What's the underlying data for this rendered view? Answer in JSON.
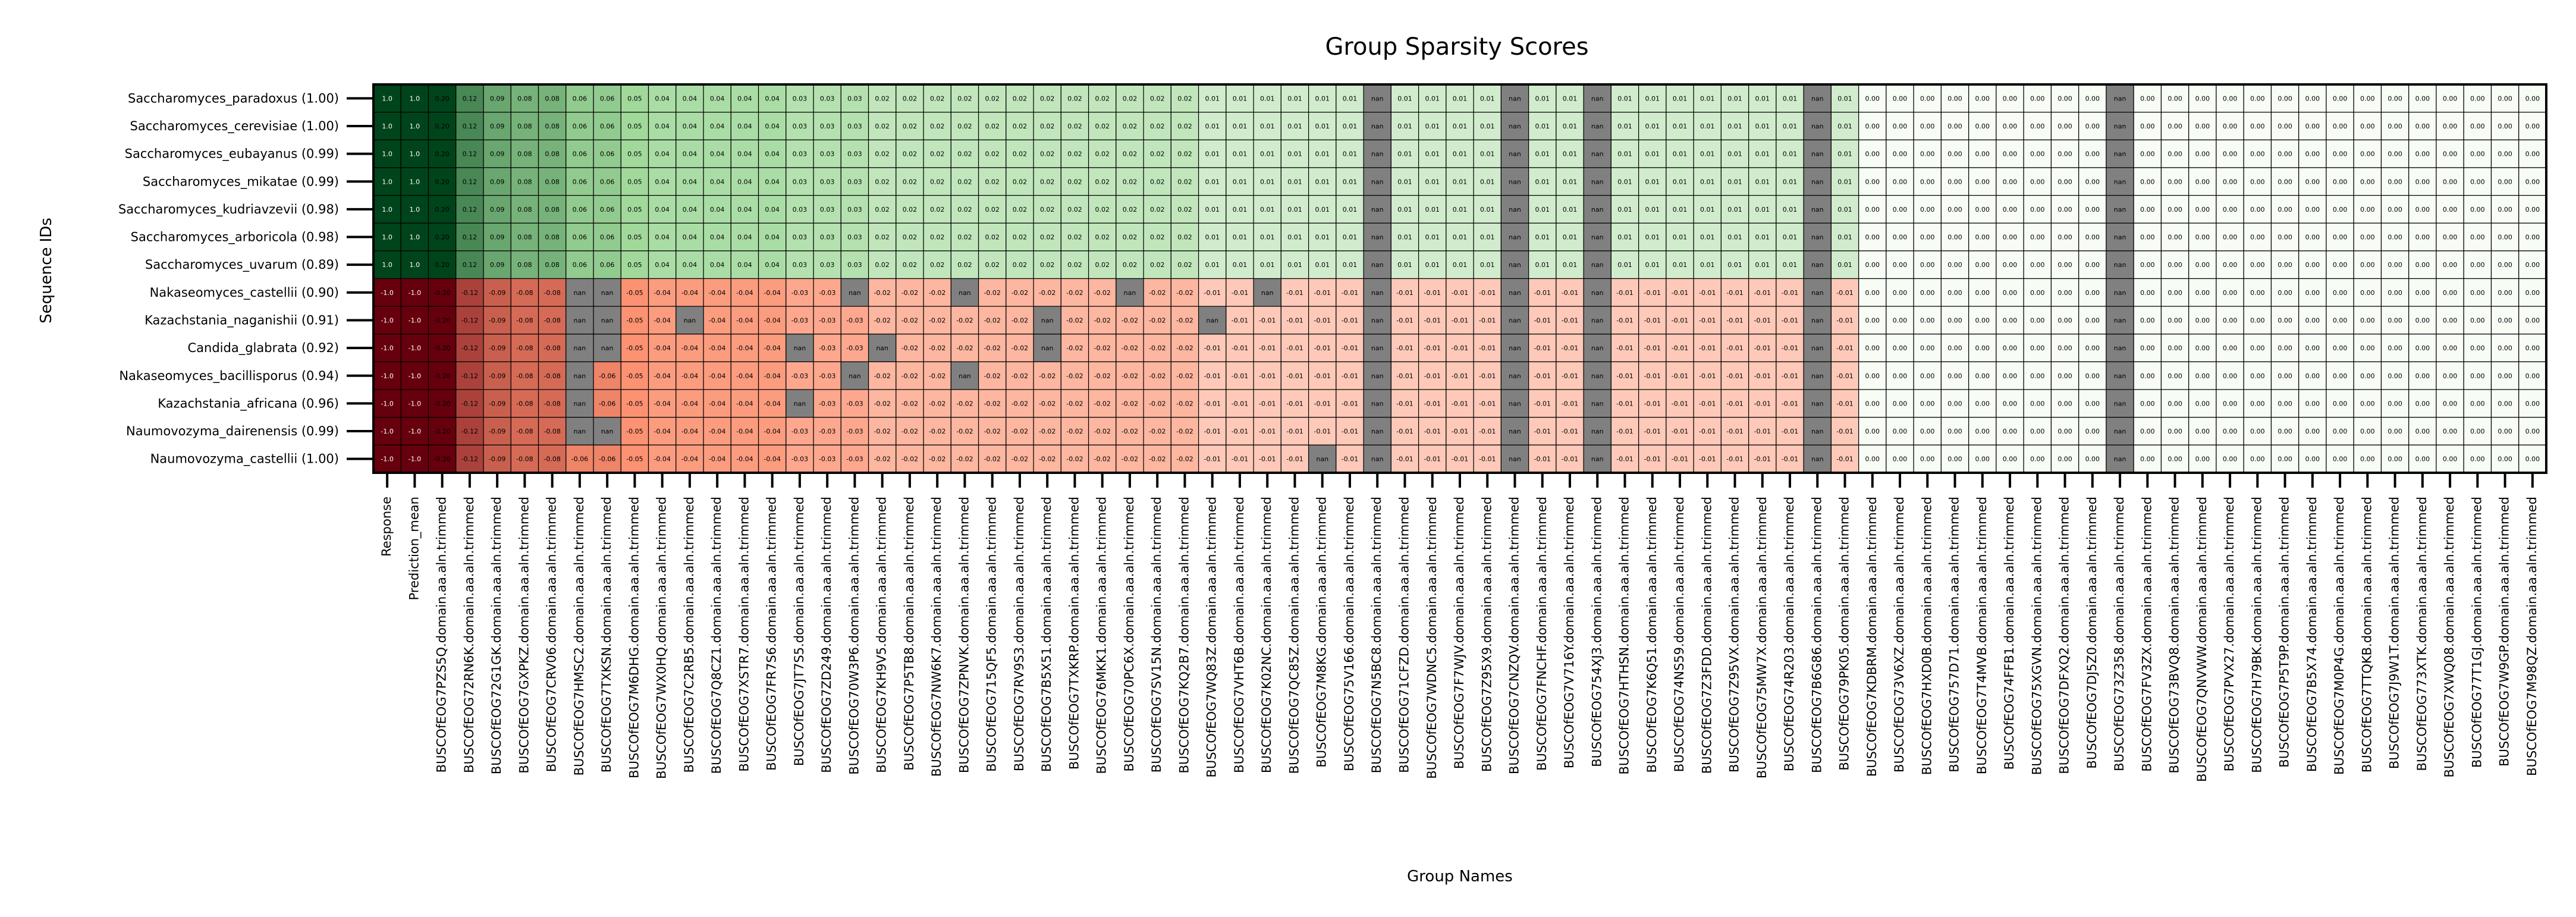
{
  "chart_data": {
    "type": "heatmap",
    "title": "Group Sparsity Scores",
    "xlabel": "Group Names",
    "ylabel": "Sequence IDs",
    "rows": [
      "Saccharomyces_paradoxus (1.00)",
      "Saccharomyces_cerevisiae (1.00)",
      "Saccharomyces_eubayanus (0.99)",
      "Saccharomyces_mikatae (0.99)",
      "Saccharomyces_kudriavzevii (0.98)",
      "Saccharomyces_arboricola (0.98)",
      "Saccharomyces_uvarum (0.89)",
      "Nakaseomyces_castellii (0.90)",
      "Kazachstania_naganishii (0.91)",
      "Candida_glabrata (0.92)",
      "Nakaseomyces_bacillisporus (0.94)",
      "Kazachstania_africana (0.96)",
      "Naumovozyma_dairenensis (0.99)",
      "Naumovozyma_castellii (1.00)"
    ],
    "columns": [
      "Response",
      "Prediction_mean",
      "BUSCOfEOG7PZS5Q.domain.aa.aln.trimmed",
      "BUSCOfEOG72RN6K.domain.aa.aln.trimmed",
      "BUSCOfEOG72G1GK.domain.aa.aln.trimmed",
      "BUSCOfEOG7GXPKZ.domain.aa.aln.trimmed",
      "BUSCOfEOG7CRV06.domain.aa.aln.trimmed",
      "BUSCOfEOG7HMSC2.domain.aa.aln.trimmed",
      "BUSCOfEOG7TXKSN.domain.aa.aln.trimmed",
      "BUSCOfEOG7M6DHG.domain.aa.aln.trimmed",
      "BUSCOfEOG7WX0HQ.domain.aa.aln.trimmed",
      "BUSCOfEOG7C2RB5.domain.aa.aln.trimmed",
      "BUSCOfEOG7Q8CZ1.domain.aa.aln.trimmed",
      "BUSCOfEOG7XSTR7.domain.aa.aln.trimmed",
      "BUSCOfEOG7FR7S6.domain.aa.aln.trimmed",
      "BUSCOfEOG7JT7S5.domain.aa.aln.trimmed",
      "BUSCOfEOG7ZD249.domain.aa.aln.trimmed",
      "BUSCOfEOG70W3P6.domain.aa.aln.trimmed",
      "BUSCOfEOG7KH9V5.domain.aa.aln.trimmed",
      "BUSCOfEOG7P5TB8.domain.aa.aln.trimmed",
      "BUSCOfEOG7NW6K7.domain.aa.aln.trimmed",
      "BUSCOfEOG7ZPNVK.domain.aa.aln.trimmed",
      "BUSCOfEOG715QF5.domain.aa.aln.trimmed",
      "BUSCOfEOG7RV9S3.domain.aa.aln.trimmed",
      "BUSCOfEOG7B5X51.domain.aa.aln.trimmed",
      "BUSCOfEOG7TXKRP.domain.aa.aln.trimmed",
      "BUSCOfEOG76MKK1.domain.aa.aln.trimmed",
      "BUSCOfEOG70PC6X.domain.aa.aln.trimmed",
      "BUSCOfEOG7SV15N.domain.aa.aln.trimmed",
      "BUSCOfEOG7KQ2B7.domain.aa.aln.trimmed",
      "BUSCOfEOG7WQ83Z.domain.aa.aln.trimmed",
      "BUSCOfEOG7VHT6B.domain.aa.aln.trimmed",
      "BUSCOfEOG7K02NC.domain.aa.aln.trimmed",
      "BUSCOfEOG7QC85Z.domain.aa.aln.trimmed",
      "BUSCOfEOG7M8KG.domain.aa.aln.trimmed",
      "BUSCOfEOG75V166.domain.aa.aln.trimmed",
      "BUSCOfEOG7N5BC8.domain.aa.aln.trimmed",
      "BUSCOfEOG71CFZD.domain.aa.aln.trimmed",
      "BUSCOfEOG7WDNC5.domain.aa.aln.trimmed",
      "BUSCOfEOG7F7WJV.domain.aa.aln.trimmed",
      "BUSCOfEOG7Z95X9.domain.aa.aln.trimmed",
      "BUSCOfEOG7CNZQV.domain.aa.aln.trimmed",
      "BUSCOfEOG7FNCHF.domain.aa.aln.trimmed",
      "BUSCOfEOG7V716Y.domain.aa.aln.trimmed",
      "BUSCOfEOG754XJ3.domain.aa.aln.trimmed",
      "BUSCOfEOG7HTHSN.domain.aa.aln.trimmed",
      "BUSCOfEOG7K6Q51.domain.aa.aln.trimmed",
      "BUSCOfEOG74NS59.domain.aa.aln.trimmed",
      "BUSCOfEOG7Z3FDD.domain.aa.aln.trimmed",
      "BUSCOfEOG7Z95VX.domain.aa.aln.trimmed",
      "BUSCOfEOG75MW7X.domain.aa.aln.trimmed",
      "BUSCOfEOG74R203.domain.aa.aln.trimmed",
      "BUSCOfEOG7B6G86.domain.aa.aln.trimmed",
      "BUSCOfEOG79PK05.domain.aa.aln.trimmed",
      "BUSCOfEOG7KDBRM.domain.aa.aln.trimmed",
      "BUSCOfEOG73V6XZ.domain.aa.aln.trimmed",
      "BUSCOfEOG7HXD0B.domain.aa.aln.trimmed",
      "BUSCOfEOG757D71.domain.aa.aln.trimmed",
      "BUSCOfEOG7T4MVB.domain.aa.aln.trimmed",
      "BUSCOfEOG74FFB1.domain.aa.aln.trimmed",
      "BUSCOfEOG75XGVN.domain.aa.aln.trimmed",
      "BUSCOfEOG7DFXQ2.domain.aa.aln.trimmed",
      "BUSCOfEOG7DJ5Z0.domain.aa.aln.trimmed",
      "BUSCOfEOG73Z358.domain.aa.aln.trimmed",
      "BUSCOfEOG7FV3ZX.domain.aa.aln.trimmed",
      "BUSCOfEOG73BVQ8.domain.aa.aln.trimmed",
      "BUSCOfEOG7QNVWW.domain.aa.aln.trimmed",
      "BUSCOfEOG7PVX27.domain.aa.aln.trimmed",
      "BUSCOfEOG7H79BK.domain.aa.aln.trimmed",
      "BUSCOfEOG7P5T9P.domain.aa.aln.trimmed",
      "BUSCOfEOG7B5X74.domain.aa.aln.trimmed",
      "BUSCOfEOG7M0P4G.domain.aa.aln.trimmed",
      "BUSCOfEOG7TTQKB.domain.aa.aln.trimmed",
      "BUSCOfEOG7J9W1T.domain.aa.aln.trimmed",
      "BUSCOfEOG773XTK.domain.aa.aln.trimmed",
      "BUSCOfEOG7XWQ08.domain.aa.aln.trimmed",
      "BUSCOfEOG77T1GJ.domain.aa.aln.trimmed",
      "BUSCOfEOG7W9GP.domain.aa.aln.trimmed",
      "BUSCOfEOG7M98QZ.domain.aa.aln.trimmed"
    ],
    "block_values": {
      "Response": [
        1.0,
        1.0,
        1.0,
        1.0,
        1.0,
        1.0,
        1.0,
        -1.0,
        -1.0,
        -1.0,
        -1.0,
        -1.0,
        -1.0,
        -1.0
      ],
      "Prediction_mean": [
        1.0,
        1.0,
        1.0,
        1.0,
        1.0,
        1.0,
        1.0,
        -1.0,
        -1.0,
        -1.0,
        -1.0,
        -1.0,
        -1.0,
        -1.0
      ]
    },
    "sparsity_magnitudes": [
      0.2,
      0.12,
      0.09,
      0.08,
      0.08,
      0.06,
      0.06,
      0.05,
      0.04,
      0.04,
      0.04,
      0.04,
      0.04,
      0.03,
      0.03,
      0.03,
      0.02,
      0.02,
      0.02,
      0.02,
      0.02,
      0.02,
      0.02,
      0.02,
      0.02,
      0.02,
      0.02,
      0.02,
      0.01,
      0.01,
      0.01,
      0.01,
      0.01,
      0.01,
      0.01,
      0.01,
      0.01,
      0.01,
      0.01,
      0.01,
      0.01,
      0.01,
      0.01,
      0.01,
      0.01,
      0.01,
      0.01,
      0.01,
      0.01,
      0.01,
      0.01,
      0.01,
      0.0,
      0.0,
      0.0,
      0.0,
      0.0,
      0.0,
      0.0,
      0.0,
      0.0,
      0.0,
      0.0,
      0.0,
      0.0,
      0.0,
      0.0,
      0.0,
      0.0,
      0.0,
      0.0,
      0.0,
      0.0,
      0.0,
      0.0,
      0.0,
      0.0
    ],
    "nan_columns_all_rows": [
      "BUSCOfEOG7N5BC8.domain.aa.aln.trimmed",
      "BUSCOfEOG7CNZQV.domain.aa.aln.trimmed",
      "BUSCOfEOG754XJ3.domain.aa.aln.trimmed",
      "BUSCOfEOG7B6G86.domain.aa.aln.trimmed",
      "BUSCOfEOG73Z358.domain.aa.aln.trimmed"
    ],
    "colormap": "red-white-green (negative red, positive green, nan gray)",
    "cell_text_scale": "cell labels show values to 2 decimals, nan for missing"
  }
}
